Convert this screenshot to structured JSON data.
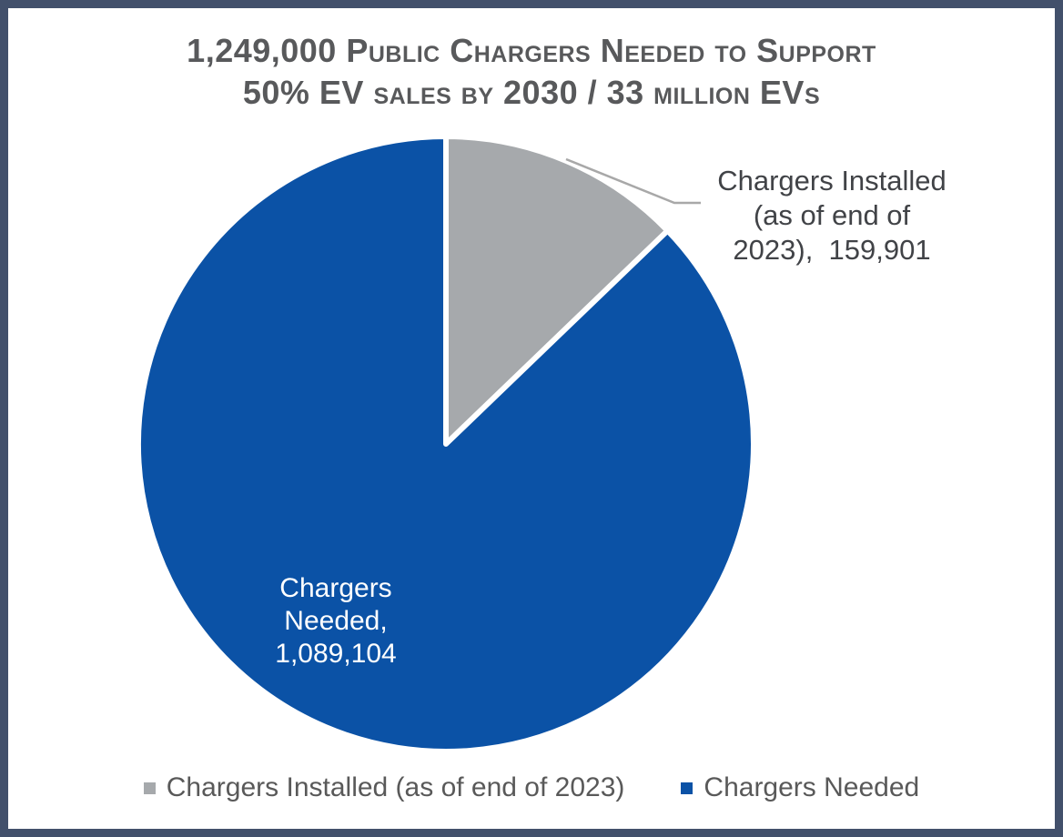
{
  "frame": {
    "border_color": "#42506b",
    "background_color": "#ffffff"
  },
  "chart_data": {
    "type": "pie",
    "title": "1,249,000 Public Chargers Needed to Support 50% EV sales by 2030 / 33 million EVs",
    "title_lines": [
      "1,249,000 Public Chargers Needed to Support",
      "50% EV sales by 2030 / 33 million EVs"
    ],
    "total": 1249005,
    "start_angle_deg": 0,
    "direction": "clockwise",
    "legend_position": "bottom",
    "slices": [
      {
        "id": "chargers-installed",
        "label": "Chargers Installed (as of end of 2023)",
        "value": 159901,
        "color": "#a6a9ac",
        "data_label": "Chargers Installed\n(as of end of\n2023),  159,901",
        "data_label_placement": "outside-callout",
        "data_label_color": "#414347"
      },
      {
        "id": "chargers-needed",
        "label": "Chargers Needed",
        "value": 1089104,
        "color": "#0b52a6",
        "data_label": "Chargers\nNeeded,\n1,089,104",
        "data_label_placement": "inside",
        "data_label_color": "#ffffff"
      }
    ],
    "slice_border_color": "#ffffff",
    "leader_line_color": "#a8a8a8",
    "legend_text_color": "#595959",
    "title_color": "#58595b"
  }
}
